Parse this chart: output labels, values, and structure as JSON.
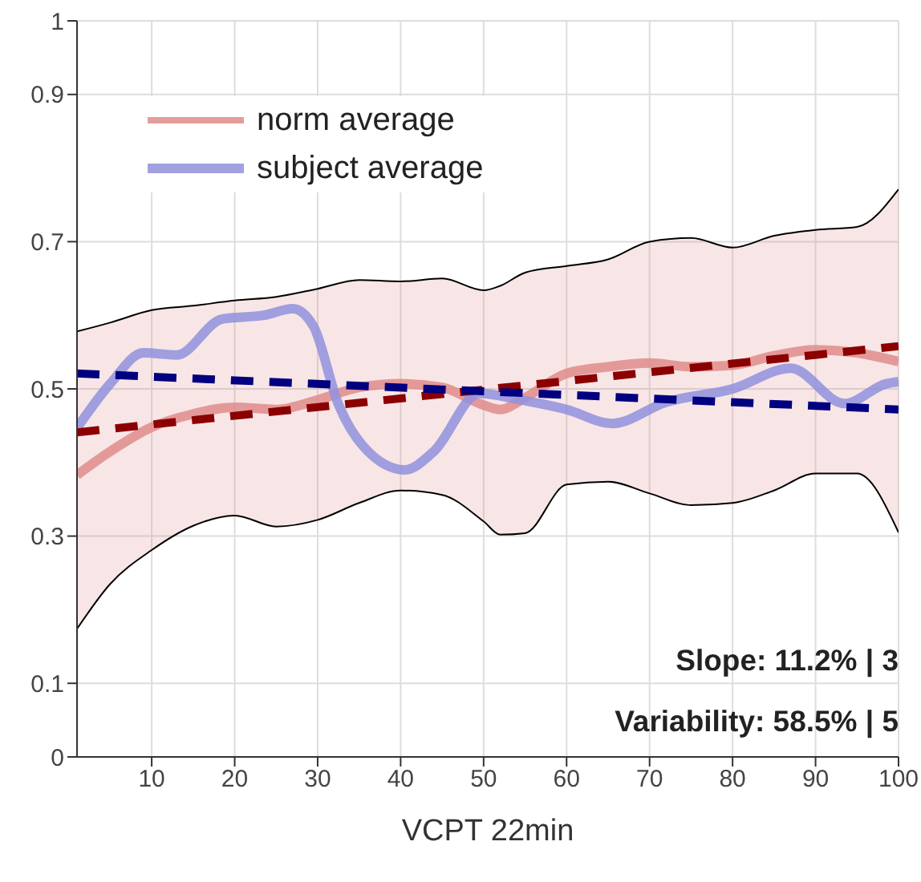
{
  "chart_data": {
    "type": "line",
    "xlabel": "VCPT 22min",
    "xlim": [
      1,
      100
    ],
    "xticks": [
      10,
      20,
      30,
      40,
      50,
      60,
      70,
      80,
      90,
      100
    ],
    "ylim": [
      0,
      1
    ],
    "yticks": [
      0,
      0.1,
      0.3,
      0.5,
      0.7,
      0.9,
      1
    ],
    "grid": true,
    "legend": "top left",
    "marker": "none",
    "annotations": [
      "Slope: 11.2% | 3",
      "Variability: 58.5% | 5"
    ],
    "series": [
      {
        "name": "norm average",
        "color": "#e08b8b",
        "line_style": "solid",
        "x": [
          1,
          5,
          10,
          15,
          20,
          25,
          30,
          35,
          40,
          45,
          50,
          52,
          55,
          60,
          65,
          70,
          75,
          80,
          85,
          90,
          95,
          100
        ],
        "values": [
          0.383,
          0.415,
          0.448,
          0.466,
          0.475,
          0.472,
          0.485,
          0.502,
          0.507,
          0.502,
          0.478,
          0.472,
          0.488,
          0.521,
          0.53,
          0.535,
          0.53,
          0.532,
          0.545,
          0.553,
          0.549,
          0.537
        ],
        "lower": [
          0.174,
          0.235,
          0.281,
          0.314,
          0.328,
          0.313,
          0.322,
          0.345,
          0.362,
          0.356,
          0.32,
          0.302,
          0.304,
          0.37,
          0.374,
          0.358,
          0.342,
          0.345,
          0.362,
          0.385,
          0.385,
          0.305
        ],
        "upper": [
          0.578,
          0.59,
          0.607,
          0.613,
          0.62,
          0.625,
          0.636,
          0.648,
          0.646,
          0.65,
          0.634,
          0.64,
          0.658,
          0.667,
          0.676,
          0.7,
          0.705,
          0.692,
          0.708,
          0.716,
          0.72,
          0.771
        ]
      },
      {
        "name": "subject average",
        "color": "#9090dd",
        "line_style": "solid",
        "x": [
          1,
          5,
          9,
          13,
          18.5,
          23.5,
          27,
          29.5,
          32.5,
          35.5,
          40.5,
          44,
          49.5,
          54,
          60,
          65.5,
          72,
          80,
          87,
          93.5,
          98.5,
          100
        ],
        "values": [
          0.447,
          0.507,
          0.549,
          0.546,
          0.595,
          0.6,
          0.609,
          0.585,
          0.479,
          0.422,
          0.39,
          0.415,
          0.494,
          0.486,
          0.472,
          0.453,
          0.482,
          0.5,
          0.528,
          0.48,
          0.507,
          0.51
        ]
      },
      {
        "color": "#8b0000",
        "line_style": "dashed",
        "x": [
          1,
          100
        ],
        "values": [
          0.441,
          0.558
        ]
      },
      {
        "color": "#000080",
        "line_style": "dashed",
        "x": [
          1,
          100
        ],
        "values": [
          0.521,
          0.472
        ]
      },
      {
        "color": "#000000",
        "line_style": "solid",
        "x": [
          1,
          5,
          10,
          15,
          20,
          25,
          30,
          35,
          40,
          45,
          50,
          52,
          55,
          60,
          65,
          70,
          75,
          80,
          85,
          90,
          95,
          100
        ],
        "values": [
          0.174,
          0.235,
          0.281,
          0.314,
          0.328,
          0.313,
          0.322,
          0.345,
          0.362,
          0.356,
          0.32,
          0.302,
          0.304,
          0.37,
          0.374,
          0.358,
          0.342,
          0.345,
          0.362,
          0.385,
          0.385,
          0.305
        ]
      },
      {
        "color": "#000000",
        "line_style": "solid",
        "x": [
          1,
          5,
          10,
          15,
          20,
          25,
          30,
          35,
          40,
          45,
          50,
          52,
          55,
          60,
          65,
          70,
          75,
          80,
          85,
          90,
          95,
          100
        ],
        "values": [
          0.578,
          0.59,
          0.607,
          0.613,
          0.62,
          0.625,
          0.636,
          0.648,
          0.646,
          0.65,
          0.634,
          0.64,
          0.658,
          0.667,
          0.676,
          0.7,
          0.705,
          0.692,
          0.708,
          0.716,
          0.72,
          0.771
        ]
      }
    ]
  }
}
